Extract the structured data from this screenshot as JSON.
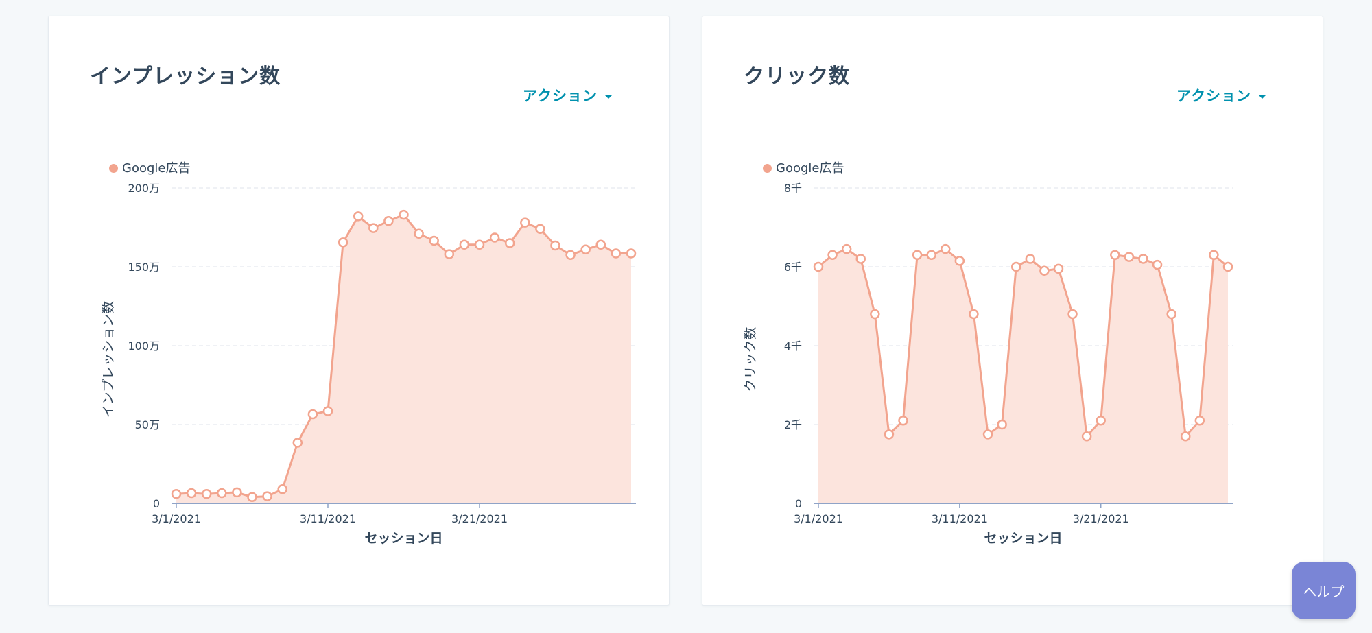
{
  "help_label": "ヘルプ",
  "colors": {
    "series": "#f2a48e",
    "fill": "#fce4dd",
    "grid": "#dfe3eb",
    "axis": "#8fa3c7",
    "accent": "#0091ae"
  },
  "cards": [
    {
      "title": "インプレッション数",
      "action_label": "アクション",
      "legend_label": "Google広告"
    },
    {
      "title": "クリック数",
      "action_label": "アクション",
      "legend_label": "Google広告"
    }
  ],
  "chart_data": [
    {
      "type": "area",
      "title": "インプレッション数",
      "xlabel": "セッション日",
      "ylabel": "インプレッション数",
      "ylim": [
        0,
        2000000
      ],
      "yticks": [
        0,
        500000,
        1000000,
        1500000,
        2000000
      ],
      "ytick_labels": [
        "0",
        "50万",
        "100万",
        "150万",
        "200万"
      ],
      "xtick_labels": [
        {
          "label": "3/1/2021",
          "day": 1
        },
        {
          "label": "3/11/2021",
          "day": 11
        },
        {
          "label": "3/21/2021",
          "day": 21
        }
      ],
      "grid": true,
      "legend_position": "top-left",
      "series": [
        {
          "name": "Google広告",
          "x": [
            "3/1/2021",
            "3/2/2021",
            "3/3/2021",
            "3/4/2021",
            "3/5/2021",
            "3/6/2021",
            "3/7/2021",
            "3/8/2021",
            "3/9/2021",
            "3/10/2021",
            "3/11/2021",
            "3/12/2021",
            "3/13/2021",
            "3/14/2021",
            "3/15/2021",
            "3/16/2021",
            "3/17/2021",
            "3/18/2021",
            "3/19/2021",
            "3/20/2021",
            "3/21/2021",
            "3/22/2021",
            "3/23/2021",
            "3/24/2021",
            "3/25/2021",
            "3/26/2021",
            "3/27/2021",
            "3/28/2021",
            "3/29/2021",
            "3/30/2021",
            "3/31/2021"
          ],
          "values": [
            60000,
            65000,
            60000,
            65000,
            70000,
            40000,
            45000,
            90000,
            385000,
            565000,
            585000,
            1655000,
            1820000,
            1745000,
            1790000,
            1830000,
            1710000,
            1665000,
            1580000,
            1640000,
            1640000,
            1685000,
            1650000,
            1780000,
            1740000,
            1635000,
            1575000,
            1610000,
            1640000,
            1585000,
            1585000
          ]
        }
      ]
    },
    {
      "type": "area",
      "title": "クリック数",
      "xlabel": "セッション日",
      "ylabel": "クリック数",
      "ylim": [
        0,
        8000
      ],
      "yticks": [
        0,
        2000,
        4000,
        6000,
        8000
      ],
      "ytick_labels": [
        "0",
        "2千",
        "4千",
        "6千",
        "8千"
      ],
      "xtick_labels": [
        {
          "label": "3/1/2021",
          "day": 1
        },
        {
          "label": "3/11/2021",
          "day": 11
        },
        {
          "label": "3/21/2021",
          "day": 21
        }
      ],
      "grid": true,
      "legend_position": "top-left",
      "series": [
        {
          "name": "Google広告",
          "x": [
            "3/1/2021",
            "3/2/2021",
            "3/3/2021",
            "3/4/2021",
            "3/5/2021",
            "3/6/2021",
            "3/7/2021",
            "3/8/2021",
            "3/9/2021",
            "3/10/2021",
            "3/11/2021",
            "3/12/2021",
            "3/13/2021",
            "3/14/2021",
            "3/15/2021",
            "3/16/2021",
            "3/17/2021",
            "3/18/2021",
            "3/19/2021",
            "3/20/2021",
            "3/21/2021",
            "3/22/2021",
            "3/23/2021",
            "3/24/2021",
            "3/25/2021",
            "3/26/2021",
            "3/27/2021",
            "3/28/2021",
            "3/29/2021",
            "3/30/2021"
          ],
          "values": [
            6000,
            6300,
            6450,
            6200,
            4800,
            1750,
            2100,
            6300,
            6300,
            6450,
            6150,
            4800,
            1750,
            2000,
            6000,
            6200,
            5900,
            5950,
            4800,
            1700,
            2100,
            6300,
            6250,
            6200,
            6050,
            4800,
            1700,
            2100,
            6300,
            6000
          ]
        }
      ]
    }
  ]
}
